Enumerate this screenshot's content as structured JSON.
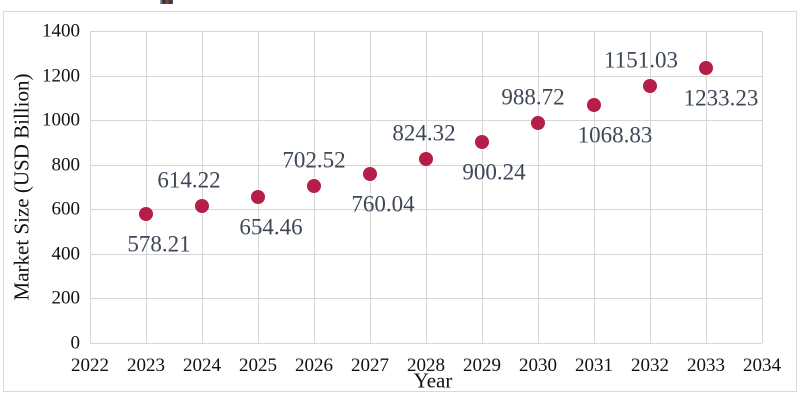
{
  "chart_data": {
    "type": "scatter",
    "title": "",
    "xlabel": "Year",
    "ylabel": "Market Size (USD Billion)",
    "x": [
      2023,
      2024,
      2025,
      2026,
      2027,
      2028,
      2029,
      2030,
      2031,
      2032,
      2033
    ],
    "values": [
      578.21,
      614.22,
      654.46,
      702.52,
      760.04,
      824.32,
      900.24,
      988.72,
      1068.83,
      1151.03,
      1233.23
    ],
    "point_labels": [
      "578.21",
      "614.22",
      "654.46",
      "702.52",
      "760.04",
      "824.32",
      "900.24",
      "988.72",
      "1068.83",
      "1151.03",
      "1233.23"
    ],
    "label_positions": [
      "below",
      "above",
      "below",
      "above",
      "below",
      "above",
      "below",
      "above",
      "below",
      "above",
      "below"
    ],
    "xlim": [
      2022,
      2034
    ],
    "ylim": [
      0,
      1400
    ],
    "x_ticks": [
      2022,
      2023,
      2024,
      2025,
      2026,
      2027,
      2028,
      2029,
      2030,
      2031,
      2032,
      2033,
      2034
    ],
    "y_ticks": [
      0,
      200,
      400,
      600,
      800,
      1000,
      1200,
      1400
    ],
    "grid": "both",
    "legend": "none",
    "marker_color": "#b51e48",
    "gridline_color": "#d6d6d6",
    "data_label_color": "#3e4757",
    "axis_text_color": "#111111"
  }
}
